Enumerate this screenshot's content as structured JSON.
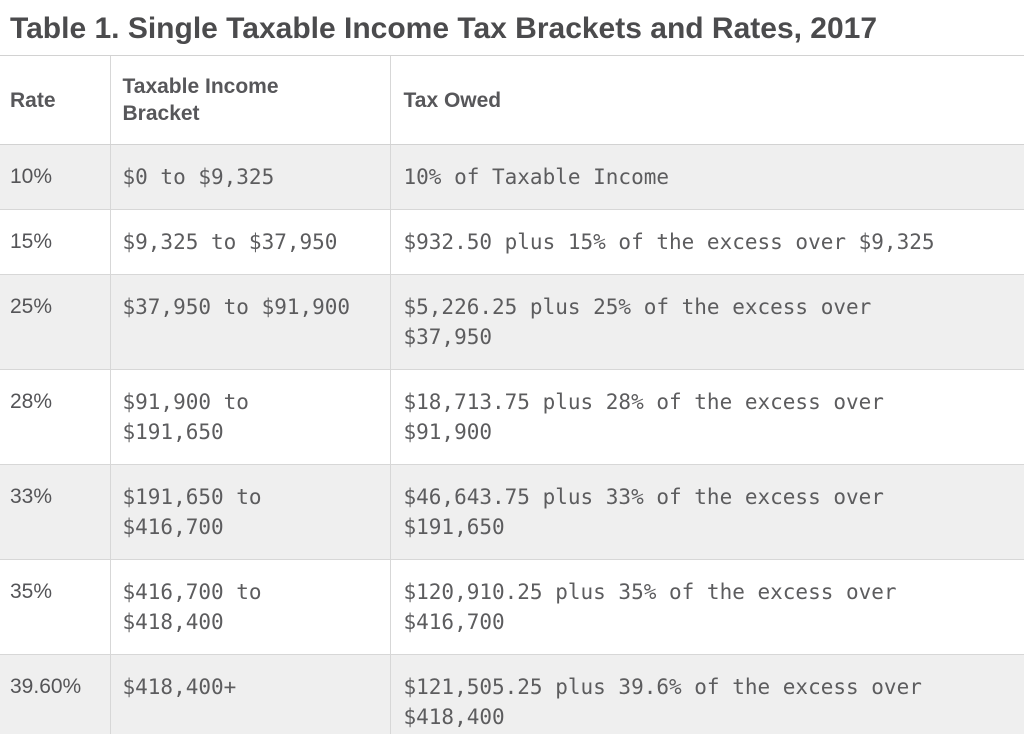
{
  "page_title": "Table 1. Single Taxable Income Tax Brackets and Rates, 2017",
  "chart_data": {
    "type": "table",
    "title": "Table 1. Single Taxable Income Tax Brackets and Rates, 2017",
    "columns": [
      "Rate",
      "Taxable Income Bracket",
      "Tax Owed"
    ],
    "rows": [
      {
        "rate": "10%",
        "bracket": "$0 to $9,325",
        "tax_owed": "10% of Taxable Income"
      },
      {
        "rate": "15%",
        "bracket": "$9,325 to $37,950",
        "tax_owed": "$932.50 plus 15% of the excess over $9,325"
      },
      {
        "rate": "25%",
        "bracket": "$37,950 to $91,900",
        "tax_owed": "$5,226.25 plus 25% of the excess over $37,950"
      },
      {
        "rate": "28%",
        "bracket": "$91,900 to $191,650",
        "tax_owed": "$18,713.75 plus 28% of the excess over $91,900"
      },
      {
        "rate": "33%",
        "bracket": "$191,650 to $416,700",
        "tax_owed": "$46,643.75 plus 33% of the excess over $191,650"
      },
      {
        "rate": "35%",
        "bracket": "$416,700 to $418,400",
        "tax_owed": "$120,910.25 plus 35% of the excess over $416,700"
      },
      {
        "rate": "39.60%",
        "bracket": "$418,400+",
        "tax_owed": "$121,505.25 plus 39.6% of the excess over $418,400"
      }
    ],
    "layout": {
      "striped_rows": true,
      "stripe_color": "#efefef",
      "border_color": "#d7d7d7",
      "title_color": "#4b4b4d",
      "header_text_color": "#57575a",
      "body_text_color": "#5c5c5e"
    }
  }
}
